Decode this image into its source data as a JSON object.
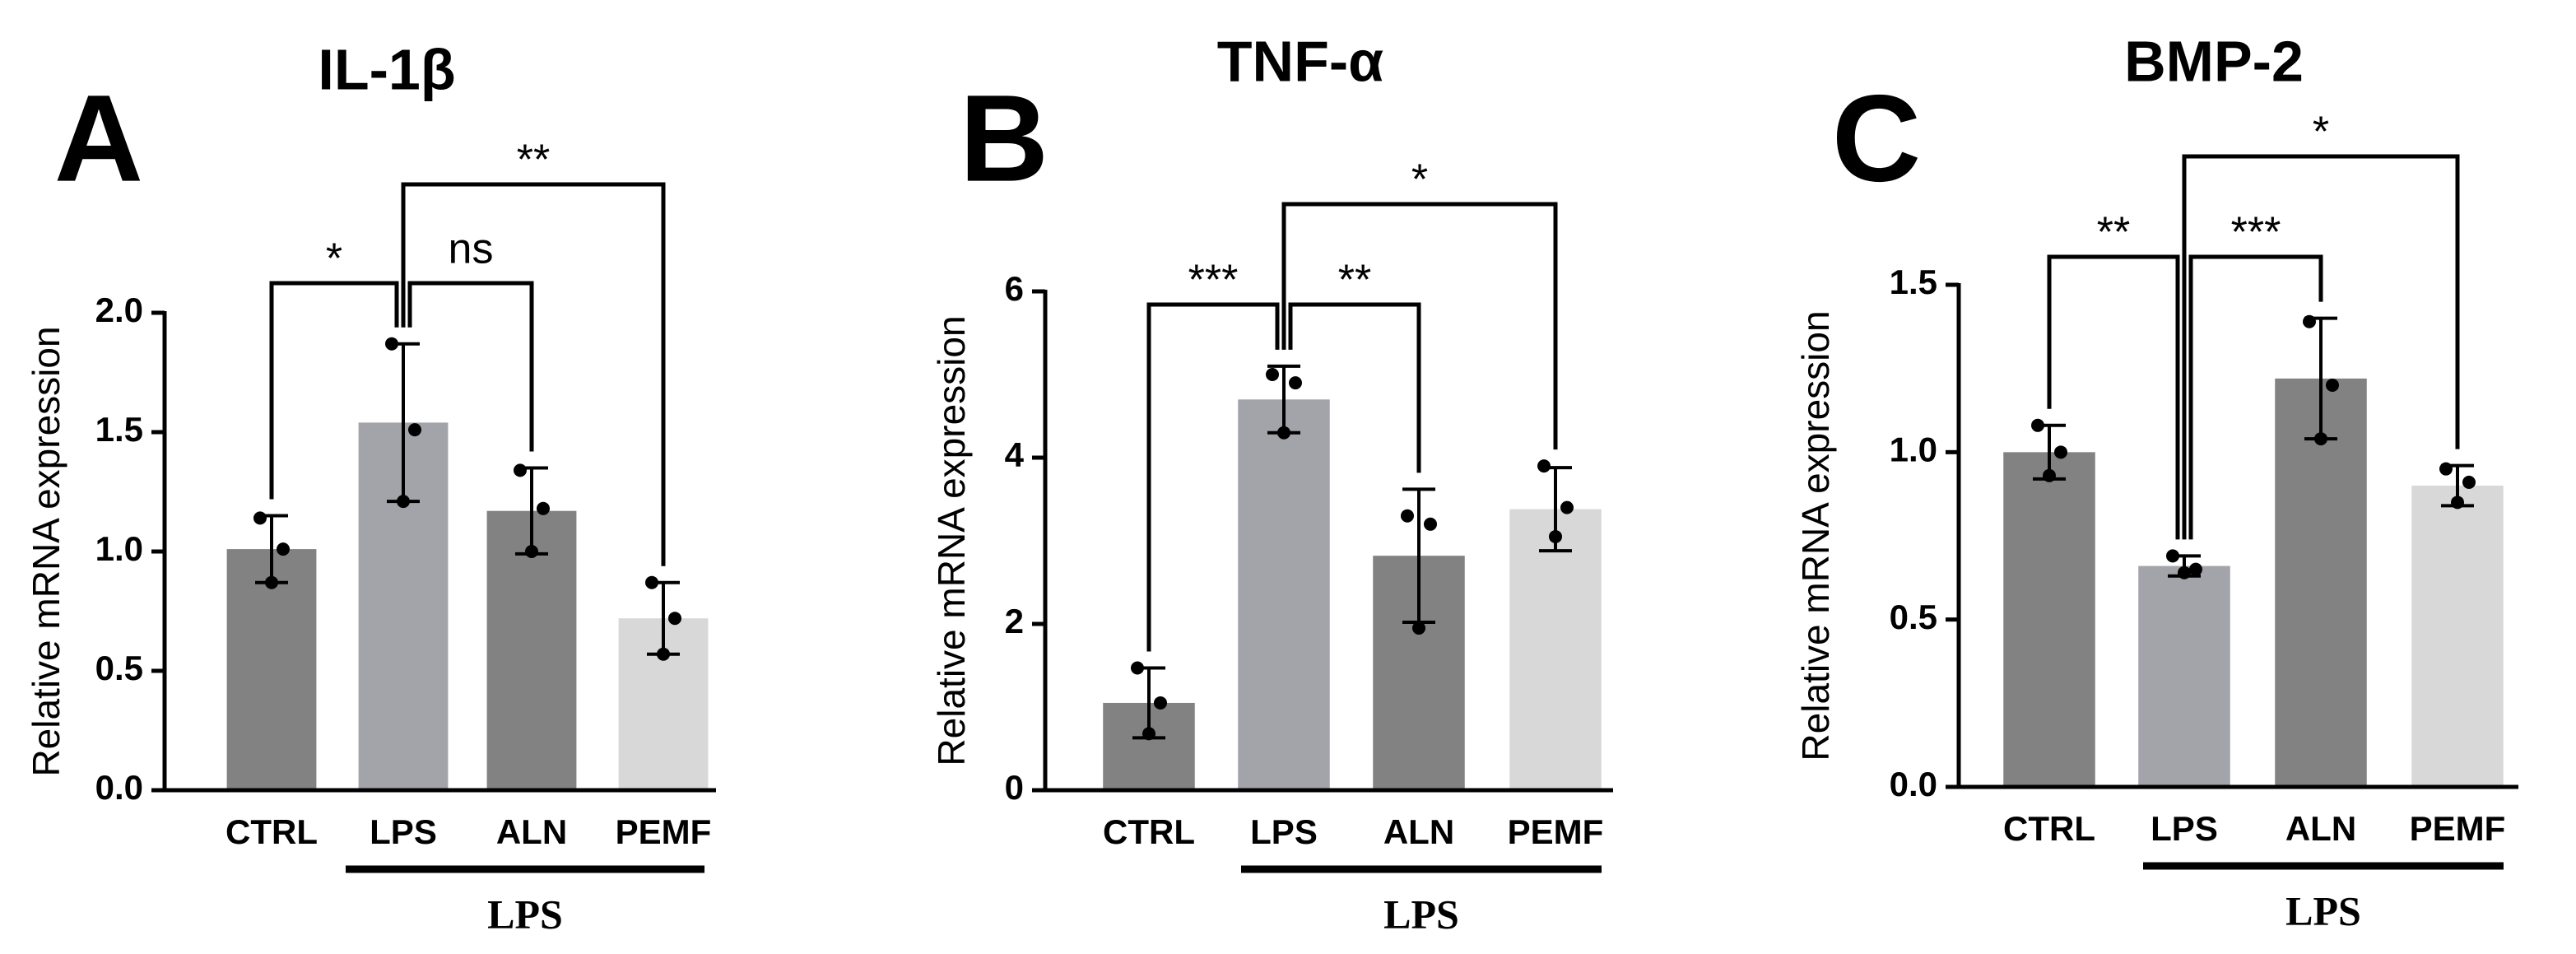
{
  "chart_data": [
    {
      "type": "bar",
      "panel": "A",
      "title": "IL-1β",
      "ylabel": "Relative mRNA expression",
      "categories": [
        "CTRL",
        "LPS",
        "ALN",
        "PEMF"
      ],
      "values": [
        1.01,
        1.54,
        1.17,
        0.72
      ],
      "errors": [
        0.14,
        0.33,
        0.18,
        0.15
      ],
      "points": [
        [
          1.14,
          1.01,
          0.87
        ],
        [
          1.87,
          1.51,
          1.21
        ],
        [
          1.34,
          1.18,
          1.0
        ],
        [
          0.87,
          0.72,
          0.57
        ]
      ],
      "colors": [
        "#828282",
        "#a3a3aa",
        "#828282",
        "#d8d8d8"
      ],
      "ylim": [
        0,
        2
      ],
      "yticks": [
        {
          "value": 0,
          "label": "0.0"
        },
        0.5,
        {
          "value": 1,
          "label": "1.0"
        },
        1.5,
        {
          "value": 2,
          "label": "2.0"
        }
      ],
      "group_label": "LPS",
      "comparisons": [
        {
          "categories": [
            "CTRL",
            "LPS"
          ],
          "label": "*"
        },
        {
          "categories": [
            "LPS",
            "ALN"
          ],
          "label": "ns"
        },
        {
          "categories": [
            "LPS",
            "PEMF"
          ],
          "label": "**"
        }
      ]
    },
    {
      "type": "bar",
      "panel": "B",
      "title": "TNF-α",
      "ylabel": "Relative mRNA expression",
      "categories": [
        "CTRL",
        "LPS",
        "ALN",
        "PEMF"
      ],
      "values": [
        1.05,
        4.7,
        2.82,
        3.38
      ],
      "errors": [
        0.42,
        0.4,
        0.8,
        0.5
      ],
      "points": [
        [
          1.47,
          1.05,
          0.68
        ],
        [
          5.0,
          4.9,
          4.3
        ],
        [
          3.3,
          3.2,
          1.95
        ],
        [
          3.9,
          3.4,
          3.05
        ]
      ],
      "colors": [
        "#828282",
        "#a3a3aa",
        "#828282",
        "#d8d8d8"
      ],
      "ylim": [
        0,
        6
      ],
      "yticks": [
        0,
        2,
        4,
        6
      ],
      "group_label": "LPS",
      "comparisons": [
        {
          "categories": [
            "CTRL",
            "LPS"
          ],
          "label": "***"
        },
        {
          "categories": [
            "LPS",
            "ALN"
          ],
          "label": "**"
        },
        {
          "categories": [
            "LPS",
            "PEMF"
          ],
          "label": "*"
        }
      ]
    },
    {
      "type": "bar",
      "panel": "C",
      "title": "BMP-2",
      "ylabel": "Relative mRNA expression",
      "categories": [
        "CTRL",
        "LPS",
        "ALN",
        "PEMF"
      ],
      "values": [
        1.0,
        0.66,
        1.22,
        0.9
      ],
      "errors": [
        0.08,
        0.03,
        0.18,
        0.06
      ],
      "points": [
        [
          1.08,
          1.0,
          0.93
        ],
        [
          0.69,
          0.65,
          0.64
        ],
        [
          1.39,
          1.2,
          1.04
        ],
        [
          0.95,
          0.91,
          0.85
        ]
      ],
      "colors": [
        "#828282",
        "#a3a3aa",
        "#828282",
        "#d8d8d8"
      ],
      "ylim": [
        0,
        1.5
      ],
      "yticks": [
        {
          "value": 0,
          "label": "0.0"
        },
        0.5,
        {
          "value": 1,
          "label": "1.0"
        },
        1.5
      ],
      "group_label": "LPS",
      "comparisons": [
        {
          "categories": [
            "CTRL",
            "LPS"
          ],
          "label": "**"
        },
        {
          "categories": [
            "LPS",
            "ALN"
          ],
          "label": "***"
        },
        {
          "categories": [
            "LPS",
            "PEMF"
          ],
          "label": "*"
        }
      ]
    }
  ]
}
